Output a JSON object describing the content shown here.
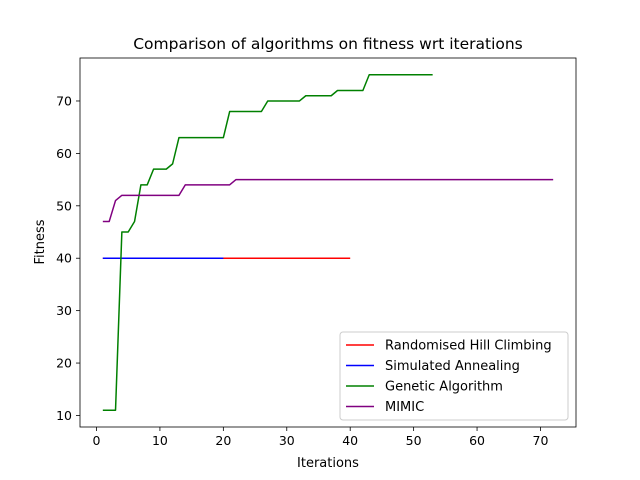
{
  "chart_data": {
    "type": "line",
    "title": "Comparison of algorithms on fitness wrt iterations",
    "xlabel": "Iterations",
    "ylabel": "Fitness",
    "xlim": [
      -2.6,
      75.6
    ],
    "ylim": [
      7.8,
      78.2
    ],
    "xticks": [
      0,
      10,
      20,
      30,
      40,
      50,
      60,
      70
    ],
    "yticks": [
      10,
      20,
      30,
      40,
      50,
      60,
      70
    ],
    "grid": false,
    "legend_position": "lower-right",
    "series": [
      {
        "name": "Randomised Hill Climbing",
        "color": "#ff0000",
        "points": [
          [
            1,
            40
          ],
          [
            40,
            40
          ]
        ]
      },
      {
        "name": "Simulated Annealing",
        "color": "#0000ff",
        "points": [
          [
            1,
            40
          ],
          [
            20,
            40
          ]
        ]
      },
      {
        "name": "Genetic Algorithm",
        "color": "#008000",
        "points": [
          [
            1,
            11
          ],
          [
            3,
            11
          ],
          [
            4,
            45
          ],
          [
            5,
            45
          ],
          [
            6,
            47
          ],
          [
            7,
            54
          ],
          [
            8,
            54
          ],
          [
            9,
            57
          ],
          [
            11,
            57
          ],
          [
            12,
            58
          ],
          [
            13,
            63
          ],
          [
            20,
            63
          ],
          [
            21,
            68
          ],
          [
            26,
            68
          ],
          [
            27,
            70
          ],
          [
            32,
            70
          ],
          [
            33,
            71
          ],
          [
            37,
            71
          ],
          [
            38,
            72
          ],
          [
            42,
            72
          ],
          [
            43,
            75
          ],
          [
            53,
            75
          ]
        ]
      },
      {
        "name": "MIMIC",
        "color": "#800080",
        "points": [
          [
            1,
            47
          ],
          [
            2,
            47
          ],
          [
            3,
            51
          ],
          [
            4,
            52
          ],
          [
            13,
            52
          ],
          [
            14,
            54
          ],
          [
            21,
            54
          ],
          [
            22,
            55
          ],
          [
            72,
            55
          ]
        ]
      }
    ]
  }
}
